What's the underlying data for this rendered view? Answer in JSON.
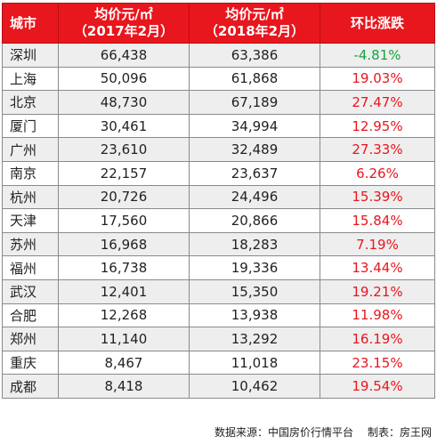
{
  "table": {
    "headers": {
      "city": "城市",
      "v2017_line1": "均价元/㎡",
      "v2017_line2": "（2017年2月）",
      "v2018_line1": "均价元/㎡",
      "v2018_line2": "（2018年2月）",
      "change": "环比涨跌"
    },
    "rows": [
      {
        "city": "深圳",
        "v2017": "66,438",
        "v2018": "63,386",
        "change": "-4.81%"
      },
      {
        "city": "上海",
        "v2017": "50,096",
        "v2018": "61,868",
        "change": "19.03%"
      },
      {
        "city": "北京",
        "v2017": "48,730",
        "v2018": "67,189",
        "change": "27.47%"
      },
      {
        "city": "厦门",
        "v2017": "30,461",
        "v2018": "34,994",
        "change": "12.95%"
      },
      {
        "city": "广州",
        "v2017": "23,610",
        "v2018": "32,489",
        "change": "27.33%"
      },
      {
        "city": "南京",
        "v2017": "22,157",
        "v2018": "23,637",
        "change": "6.26%"
      },
      {
        "city": "杭州",
        "v2017": "20,726",
        "v2018": "24,496",
        "change": "15.39%"
      },
      {
        "city": "天津",
        "v2017": "17,560",
        "v2018": "20,866",
        "change": "15.84%"
      },
      {
        "city": "苏州",
        "v2017": "16,968",
        "v2018": "18,283",
        "change": "7.19%"
      },
      {
        "city": "福州",
        "v2017": "16,738",
        "v2018": "19,336",
        "change": "13.44%"
      },
      {
        "city": "武汉",
        "v2017": "12,401",
        "v2018": "15,350",
        "change": "19.21%"
      },
      {
        "city": "合肥",
        "v2017": "12,268",
        "v2018": "13,938",
        "change": "11.98%"
      },
      {
        "city": "郑州",
        "v2017": "11,140",
        "v2018": "13,292",
        "change": "16.19%"
      },
      {
        "city": "重庆",
        "v2017": "8,467",
        "v2018": "11,018",
        "change": "23.15%"
      },
      {
        "city": "成都",
        "v2017": "8,418",
        "v2018": "10,462",
        "change": "19.54%"
      }
    ]
  },
  "footnote": {
    "source": "数据来源：中国房价行情平台",
    "maker": "制表：房王网"
  },
  "colors": {
    "header_bg": "#e8161d",
    "rise": "#e8161d",
    "fall": "#15a53a"
  }
}
